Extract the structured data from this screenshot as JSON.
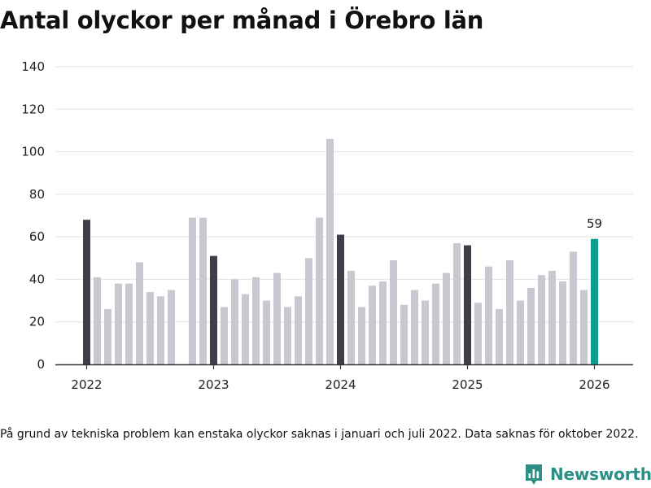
{
  "chart_data": {
    "type": "bar",
    "title": "Antal olyckor per månad i Örebro län",
    "xlabel": "",
    "ylabel": "",
    "ylim": [
      0,
      140
    ],
    "yticks": [
      0,
      20,
      40,
      60,
      80,
      100,
      120,
      140
    ],
    "xtick_labels": [
      "2022",
      "2023",
      "2024",
      "2025",
      "2026"
    ],
    "grid": true,
    "last_value_label": "59",
    "colors": {
      "january": "#3f3f4a",
      "other": "#c8c8d0",
      "latest": "#0f9d8f",
      "grid": "#e2e2e2",
      "axis": "#333333"
    },
    "series": [
      {
        "name": "Olyckor",
        "values": [
          68,
          41,
          26,
          38,
          38,
          48,
          34,
          32,
          35,
          null,
          69,
          69,
          51,
          27,
          40,
          33,
          41,
          30,
          43,
          27,
          32,
          50,
          69,
          106,
          61,
          44,
          27,
          37,
          39,
          49,
          28,
          35,
          30,
          38,
          43,
          57,
          56,
          29,
          46,
          26,
          49,
          30,
          36,
          42,
          44,
          39,
          53,
          35,
          59
        ]
      }
    ]
  },
  "footnote": "På grund av tekniska problem kan enstaka olyckor saknas i januari och juli 2022. Data saknas för oktober 2022.",
  "brand": {
    "name": "Newsworthy",
    "color": "#2c8f86"
  }
}
